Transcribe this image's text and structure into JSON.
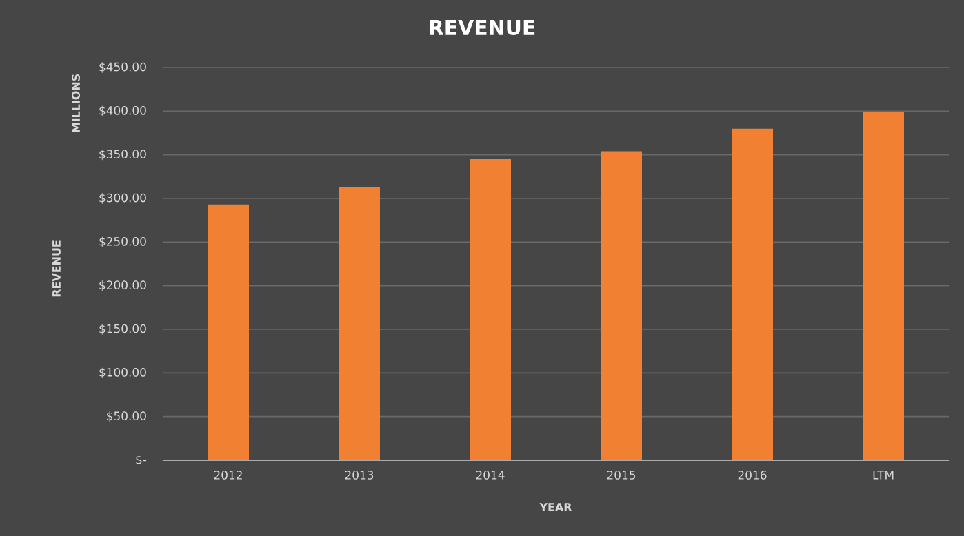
{
  "chart_data": {
    "type": "bar",
    "title": "REVENUE",
    "xlabel": "YEAR",
    "ylabel": "REVENUE",
    "annotations": [
      "MILLIONS"
    ],
    "categories": [
      "2012",
      "2013",
      "2014",
      "2015",
      "2016",
      "LTM"
    ],
    "values": [
      293,
      313,
      345,
      354,
      380,
      399
    ],
    "color": "#f28033",
    "ylim": [
      0,
      450
    ],
    "yticks": [
      {
        "value": 0,
        "label": "$-"
      },
      {
        "value": 50,
        "label": "$50.00"
      },
      {
        "value": 100,
        "label": "$100.00"
      },
      {
        "value": 150,
        "label": "$150.00"
      },
      {
        "value": 200,
        "label": "$200.00"
      },
      {
        "value": 250,
        "label": "$250.00"
      },
      {
        "value": 300,
        "label": "$300.00"
      },
      {
        "value": 350,
        "label": "$350.00"
      },
      {
        "value": 400,
        "label": "$400.00"
      },
      {
        "value": 450,
        "label": "$450.00"
      }
    ],
    "grid": "y"
  }
}
